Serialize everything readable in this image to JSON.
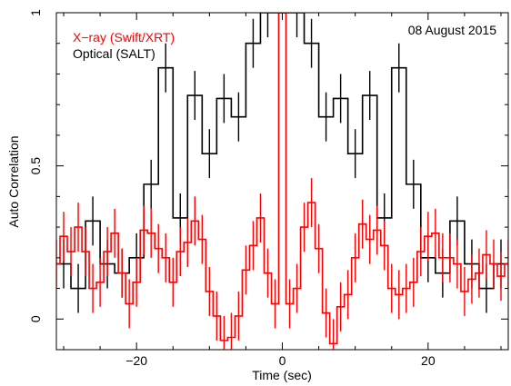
{
  "chart_data": {
    "type": "line",
    "title": "",
    "annotation": "08 August 2015",
    "xlabel": "Time (sec)",
    "ylabel": "Auto Correlation",
    "xlim": [
      -31,
      31
    ],
    "ylim": [
      -0.1,
      1.0
    ],
    "xticks": [
      -20,
      0,
      20
    ],
    "yticks": [
      0,
      0.5,
      1
    ],
    "xtick_labels": [
      "−20",
      "0",
      "20"
    ],
    "ytick_labels": [
      "0",
      "0.5",
      "1"
    ],
    "grid": false,
    "legend_position": "top-left",
    "series": [
      {
        "name": "X−ray (Swift/XRT)",
        "color": "#ff0000",
        "step": 1,
        "x": [
          -31,
          -30,
          -29,
          -28,
          -27,
          -26,
          -25,
          -24,
          -23,
          -22,
          -21,
          -20,
          -19,
          -18,
          -17,
          -16,
          -15,
          -14,
          -13,
          -12,
          -11,
          -10,
          -9,
          -8,
          -7,
          -6,
          -5,
          -4,
          -3,
          -2,
          -1,
          0,
          1,
          2,
          3,
          4,
          5,
          6,
          7,
          8,
          9,
          10,
          11,
          12,
          13,
          14,
          15,
          16,
          17,
          18,
          19,
          20,
          21,
          22,
          23,
          24,
          25,
          26,
          27,
          28,
          29,
          30,
          31
        ],
        "y": [
          0.18,
          0.27,
          0.22,
          0.3,
          0.22,
          0.1,
          0.12,
          0.22,
          0.28,
          0.15,
          0.05,
          0.12,
          0.29,
          0.28,
          0.23,
          0.2,
          0.12,
          0.22,
          0.25,
          0.32,
          0.26,
          0.09,
          0.01,
          -0.07,
          -0.06,
          0.01,
          0.16,
          0.24,
          0.33,
          0.15,
          0.05,
          1.0,
          0.05,
          0.1,
          0.3,
          0.38,
          0.23,
          0.02,
          -0.08,
          0.04,
          0.08,
          0.2,
          0.31,
          0.26,
          0.29,
          0.24,
          0.1,
          0.08,
          0.1,
          0.12,
          0.22,
          0.27,
          0.28,
          0.2,
          0.2,
          0.18,
          0.09,
          0.13,
          0.15,
          0.21,
          0.18,
          0.14,
          0.18
        ],
        "err": [
          0.08,
          0.08,
          0.08,
          0.08,
          0.08,
          0.08,
          0.08,
          0.08,
          0.08,
          0.08,
          0.08,
          0.08,
          0.08,
          0.08,
          0.08,
          0.08,
          0.08,
          0.08,
          0.08,
          0.08,
          0.08,
          0.08,
          0.08,
          0.08,
          0.08,
          0.08,
          0.08,
          0.08,
          0.08,
          0.08,
          0.08,
          0.0,
          0.08,
          0.08,
          0.08,
          0.08,
          0.08,
          0.08,
          0.08,
          0.08,
          0.08,
          0.08,
          0.08,
          0.08,
          0.08,
          0.08,
          0.08,
          0.08,
          0.08,
          0.08,
          0.08,
          0.08,
          0.08,
          0.08,
          0.08,
          0.08,
          0.08,
          0.08,
          0.08,
          0.08,
          0.08,
          0.08,
          0.08
        ]
      },
      {
        "name": "Optical (SALT)",
        "color": "#000000",
        "step": 2,
        "x": [
          -30,
          -28,
          -26,
          -24,
          -22,
          -20,
          -18,
          -16,
          -14,
          -12,
          -10,
          -8,
          -6,
          -4,
          -2,
          0,
          2,
          4,
          6,
          8,
          10,
          12,
          14,
          16,
          18,
          20,
          22,
          24,
          26,
          28,
          30
        ],
        "y": [
          0.18,
          0.1,
          0.32,
          0.18,
          0.15,
          0.2,
          0.44,
          0.82,
          0.33,
          0.73,
          0.54,
          0.72,
          0.66,
          0.9,
          1.0,
          1.0,
          1.0,
          0.9,
          0.66,
          0.72,
          0.54,
          0.73,
          0.33,
          0.82,
          0.44,
          0.2,
          0.15,
          0.32,
          0.18,
          0.1,
          0.18
        ],
        "err": [
          0.08,
          0.08,
          0.08,
          0.08,
          0.08,
          0.08,
          0.08,
          0.08,
          0.08,
          0.08,
          0.08,
          0.08,
          0.08,
          0.08,
          0.08,
          0.0,
          0.08,
          0.08,
          0.08,
          0.08,
          0.08,
          0.08,
          0.08,
          0.08,
          0.08,
          0.08,
          0.08,
          0.08,
          0.08,
          0.08,
          0.08
        ]
      }
    ]
  }
}
